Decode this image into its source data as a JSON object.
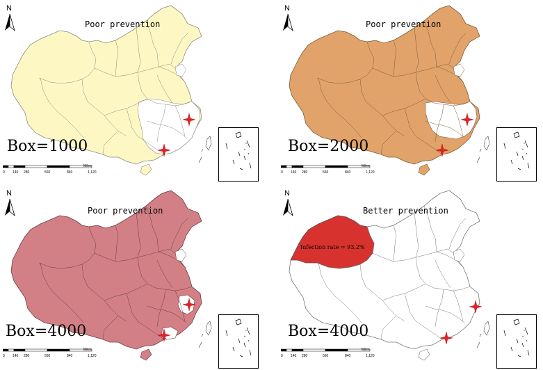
{
  "panels": [
    {
      "title": "Poor prevention",
      "box_label": "Box=1000",
      "fill": "#fdf8c3",
      "stroke": "#8a8a80",
      "highlight": "none",
      "note": ""
    },
    {
      "title": "Poor prevention",
      "box_label": "Box=2000",
      "fill": "#e1a36a",
      "stroke": "#7a5a3a",
      "highlight": "none",
      "note": ""
    },
    {
      "title": "Poor prevention",
      "box_label": "Box=4000",
      "fill": "#d27f86",
      "stroke": "#6a3d40",
      "highlight": "none",
      "note": ""
    },
    {
      "title": "Better prevention",
      "box_label": "Box=4000",
      "fill": "#ffffff",
      "stroke": "#777777",
      "highlight": "#d8322e",
      "note": "Infection rate = 93.2%"
    }
  ],
  "map_common": {
    "north_label": "N",
    "scale_ticks": [
      "0",
      "140",
      "280",
      "560",
      "840",
      "1,120"
    ],
    "scale_unit": "Miles",
    "marker_color": "#e2232a",
    "white_region_color": "#ffffff",
    "icons": [
      "north-arrow-icon",
      "star-marker-icon"
    ]
  }
}
